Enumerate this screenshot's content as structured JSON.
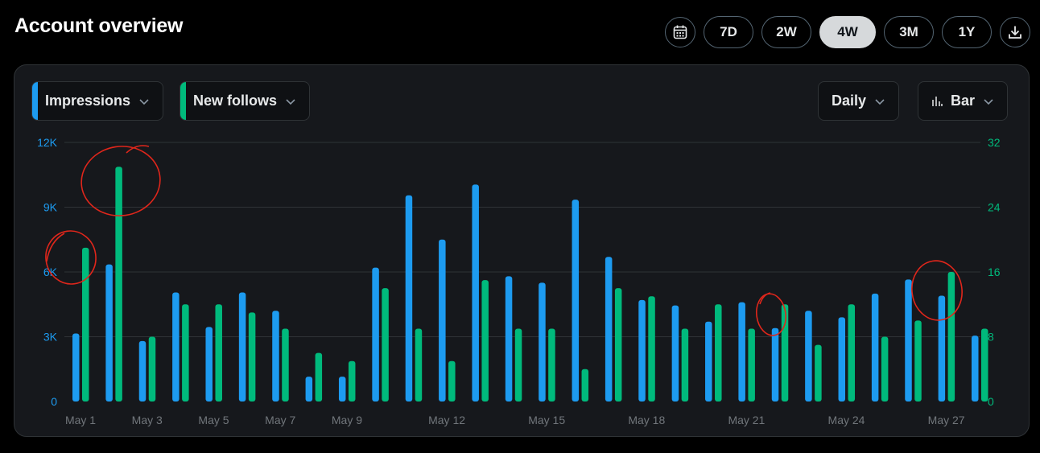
{
  "header": {
    "title": "Account overview"
  },
  "toolbar": {
    "calendar_icon": "calendar-icon",
    "ranges": [
      "7D",
      "2W",
      "4W",
      "3M",
      "1Y"
    ],
    "active_range": "4W",
    "download_icon": "download-icon"
  },
  "metrics": {
    "primary": {
      "label": "Impressions",
      "color": "#1d9bf0"
    },
    "secondary": {
      "label": "New follows",
      "color": "#00ba7c"
    }
  },
  "controls": {
    "interval": "Daily",
    "chart_type": "Bar",
    "chart_type_icon": "bar-chart-icon"
  },
  "chart_data": {
    "type": "bar",
    "x": [
      "May 1",
      "May 2",
      "May 3",
      "May 4",
      "May 5",
      "May 6",
      "May 7",
      "May 8",
      "May 9",
      "May 10",
      "May 11",
      "May 12",
      "May 13",
      "May 14",
      "May 15",
      "May 16",
      "May 17",
      "May 18",
      "May 19",
      "May 20",
      "May 21",
      "May 22",
      "May 23",
      "May 24",
      "May 25",
      "May 26",
      "May 27",
      "May 28"
    ],
    "x_tick_labels": [
      "May 1",
      "May 3",
      "May 5",
      "May 7",
      "May 9",
      "May 12",
      "May 15",
      "May 18",
      "May 21",
      "May 24",
      "May 27"
    ],
    "series": [
      {
        "name": "Impressions",
        "axis": "left",
        "color": "#1d9bf0",
        "values": [
          3150,
          6350,
          2800,
          5050,
          3450,
          5050,
          4200,
          1150,
          1150,
          6200,
          9550,
          7500,
          10050,
          5800,
          5500,
          9350,
          6700,
          4700,
          4450,
          3700,
          4600,
          3400,
          4200,
          3900,
          5000,
          5650,
          4900,
          3050
        ]
      },
      {
        "name": "New follows",
        "axis": "right",
        "color": "#00ba7c",
        "values": [
          19,
          29,
          8,
          12,
          12,
          11,
          9,
          6,
          5,
          14,
          9,
          5,
          15,
          9,
          9,
          4,
          14,
          13,
          9,
          12,
          9,
          12,
          7,
          12,
          8,
          10,
          16,
          9
        ]
      }
    ],
    "y_left": {
      "range": [
        0,
        12000
      ],
      "ticks": [
        "0",
        "3K",
        "6K",
        "9K",
        "12K"
      ],
      "color": "#1d9bf0"
    },
    "y_right": {
      "range": [
        0,
        32
      ],
      "ticks": [
        "0",
        "8",
        "16",
        "24",
        "32"
      ],
      "color": "#00ba7c"
    },
    "grid": true,
    "annotations": {
      "type": "hand-drawn circles",
      "color": "#e0261b",
      "targets": [
        "y-axis label 6K",
        "New follows May 2",
        "New follows May 22",
        "New follows May 27"
      ]
    }
  }
}
